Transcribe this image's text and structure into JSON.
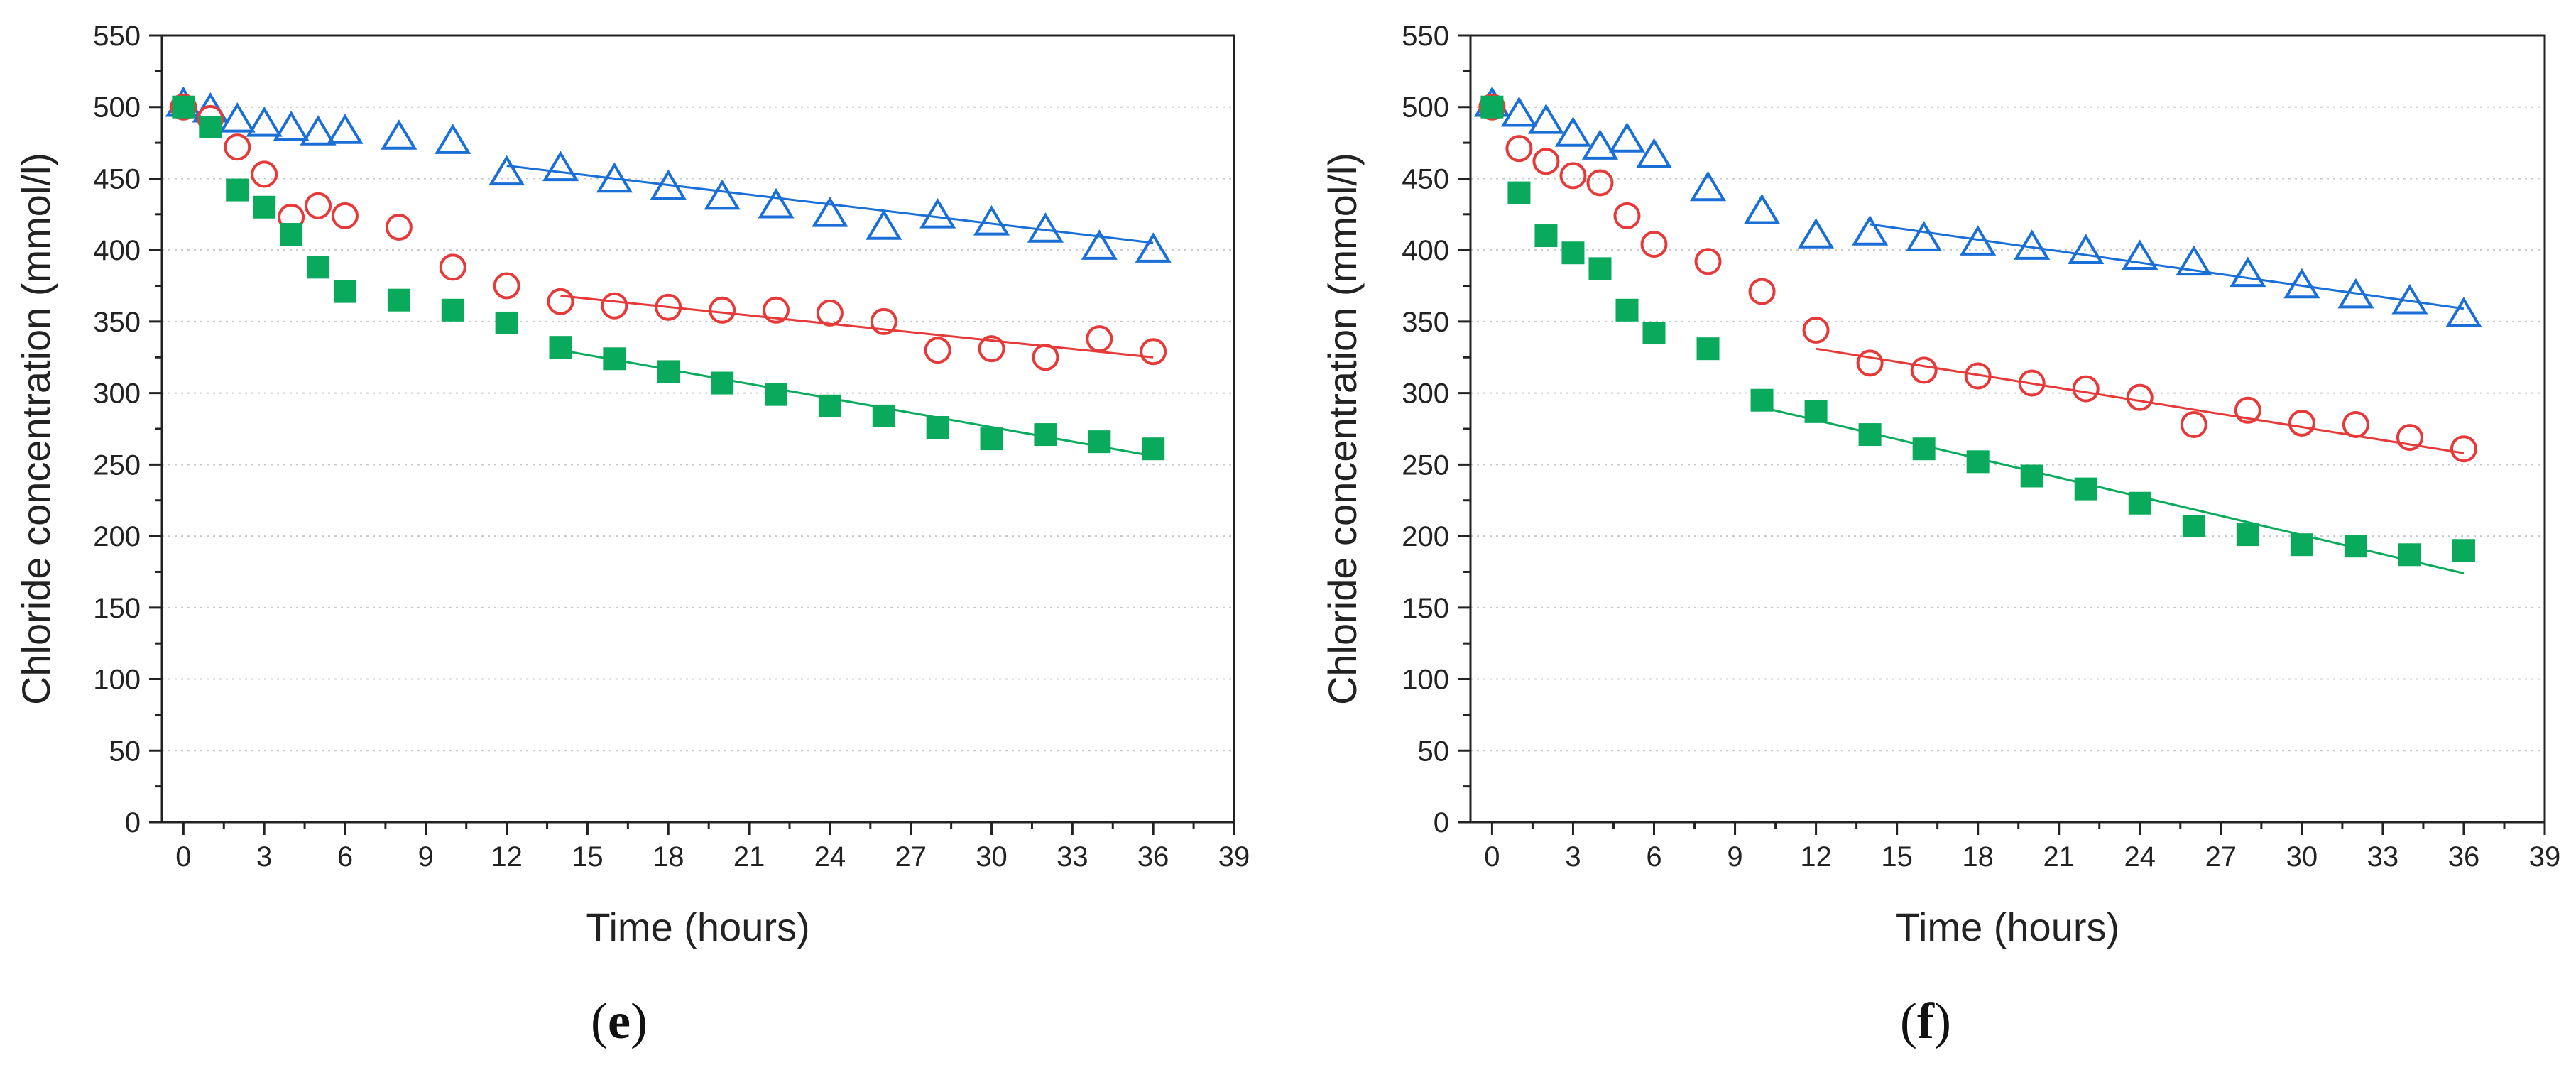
{
  "colors": {
    "series_a": "#1a6fd6",
    "series_b": "#e63a3a",
    "series_c": "#0aaa5c",
    "grid": "#c8c8c8",
    "axis": "#222222"
  },
  "chart_data": [
    {
      "type": "scatter",
      "panel_label_open": "(",
      "panel_label_letter": "e",
      "panel_label_close": ")",
      "xlabel": "Time (hours)",
      "ylabel": "Chloride concentration (mmol/l)",
      "xlim": [
        -0.8,
        39
      ],
      "ylim": [
        0,
        550
      ],
      "xticks": [
        0,
        3,
        6,
        9,
        12,
        15,
        18,
        21,
        24,
        27,
        30,
        33,
        36,
        39
      ],
      "yticks": [
        0,
        50,
        100,
        150,
        200,
        250,
        300,
        350,
        400,
        450,
        500,
        550
      ],
      "grid": "horizontal dotted",
      "series": [
        {
          "marker": "triangle-open",
          "color": "#1a6fd6",
          "x": [
            0,
            1,
            2,
            3,
            4,
            5,
            6,
            8,
            10,
            12,
            14,
            16,
            18,
            20,
            22,
            24,
            26,
            28,
            30,
            32,
            34,
            36
          ],
          "y": [
            502,
            498,
            491,
            488,
            485,
            482,
            483,
            479,
            476,
            454,
            457,
            449,
            444,
            437,
            431,
            425,
            416,
            424,
            419,
            414,
            402,
            400
          ],
          "fit": {
            "x": [
              12,
              36
            ],
            "y": [
              459,
              405
            ]
          }
        },
        {
          "marker": "circle-open",
          "color": "#e63a3a",
          "x": [
            0,
            1,
            2,
            3,
            4,
            5,
            6,
            8,
            10,
            12,
            14,
            16,
            18,
            20,
            22,
            24,
            26,
            28,
            30,
            32,
            34,
            36
          ],
          "y": [
            500,
            492,
            472,
            453,
            423,
            431,
            424,
            416,
            388,
            375,
            364,
            361,
            360,
            358,
            358,
            356,
            350,
            330,
            331,
            325,
            338,
            329
          ],
          "fit": {
            "x": [
              14,
              36
            ],
            "y": [
              368,
              325
            ]
          }
        },
        {
          "marker": "square-filled",
          "color": "#0aaa5c",
          "x": [
            0,
            1,
            2,
            3,
            4,
            5,
            6,
            8,
            10,
            12,
            14,
            16,
            18,
            20,
            22,
            24,
            26,
            28,
            30,
            32,
            34,
            36
          ],
          "y": [
            500,
            486,
            442,
            430,
            411,
            388,
            371,
            365,
            358,
            349,
            332,
            324,
            315,
            307,
            299,
            291,
            284,
            276,
            268,
            271,
            266,
            261
          ],
          "fit": {
            "x": [
              14,
              36
            ],
            "y": [
              330,
              256
            ]
          }
        }
      ]
    },
    {
      "type": "scatter",
      "panel_label_open": "(",
      "panel_label_letter": "f",
      "panel_label_close": ")",
      "xlabel": "Time (hours)",
      "ylabel": "Chloride concentration (mmol/l)",
      "xlim": [
        -0.8,
        39
      ],
      "ylim": [
        0,
        550
      ],
      "xticks": [
        0,
        3,
        6,
        9,
        12,
        15,
        18,
        21,
        24,
        27,
        30,
        33,
        36,
        39
      ],
      "yticks": [
        0,
        50,
        100,
        150,
        200,
        250,
        300,
        350,
        400,
        450,
        500,
        550
      ],
      "grid": "horizontal dotted",
      "series": [
        {
          "marker": "triangle-open",
          "color": "#1a6fd6",
          "x": [
            0,
            1,
            2,
            3,
            4,
            5,
            6,
            8,
            10,
            12,
            14,
            16,
            18,
            20,
            22,
            24,
            26,
            28,
            30,
            32,
            34,
            36
          ],
          "y": [
            502,
            495,
            490,
            481,
            472,
            477,
            466,
            443,
            427,
            410,
            412,
            408,
            405,
            402,
            399,
            395,
            391,
            383,
            375,
            368,
            364,
            355
          ],
          "fit": {
            "x": [
              14,
              36
            ],
            "y": [
              418,
              359
            ]
          }
        },
        {
          "marker": "circle-open",
          "color": "#e63a3a",
          "x": [
            0,
            1,
            2,
            3,
            4,
            5,
            6,
            8,
            10,
            12,
            14,
            16,
            18,
            20,
            22,
            24,
            26,
            28,
            30,
            32,
            34,
            36
          ],
          "y": [
            500,
            471,
            462,
            452,
            447,
            424,
            404,
            392,
            371,
            344,
            321,
            316,
            312,
            307,
            303,
            297,
            278,
            288,
            279,
            278,
            269,
            261
          ],
          "fit": {
            "x": [
              12,
              36
            ],
            "y": [
              331,
              258
            ]
          }
        },
        {
          "marker": "square-filled",
          "color": "#0aaa5c",
          "x": [
            0,
            1,
            2,
            3,
            4,
            5,
            6,
            8,
            10,
            12,
            14,
            16,
            18,
            20,
            22,
            24,
            26,
            28,
            30,
            32,
            34,
            36
          ],
          "y": [
            500,
            440,
            410,
            398,
            387,
            358,
            342,
            331,
            295,
            287,
            271,
            261,
            252,
            242,
            233,
            223,
            207,
            201,
            194,
            193,
            187,
            190
          ],
          "fit": {
            "x": [
              10,
              36
            ],
            "y": [
              290,
              174
            ]
          }
        }
      ]
    }
  ]
}
